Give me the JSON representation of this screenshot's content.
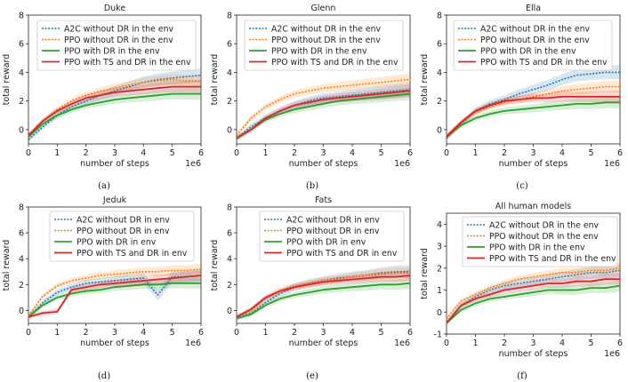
{
  "colors": {
    "a2c": "#1f77b4",
    "ppo": "#ff7f0e",
    "dr": "#2ca02c",
    "ts": "#d62728",
    "axis": "#222222"
  },
  "common": {
    "xlabel": "number of steps",
    "ylabel": "total reward",
    "xscale_label": "1e6"
  },
  "chart_data": [
    {
      "type": "line",
      "title": "Duke",
      "caption": "(a)",
      "legend": [
        "A2C without DR in the env",
        "PPO without DR in the env",
        "PPO with DR in the env",
        "PPO with TS and DR in the env"
      ],
      "xlim": [
        0,
        6
      ],
      "ylim": [
        -1,
        8
      ],
      "xticks": [
        0,
        1,
        2,
        3,
        4,
        5,
        6
      ],
      "yticks": [
        0,
        2,
        4,
        6,
        8
      ],
      "x": [
        0,
        0.5,
        1,
        1.5,
        2,
        2.5,
        3,
        3.5,
        4,
        4.5,
        5,
        5.5,
        6
      ],
      "series": [
        {
          "name": "A2C",
          "values": [
            -0.7,
            0.2,
            1.0,
            1.6,
            2.0,
            2.4,
            2.7,
            3.0,
            3.3,
            3.5,
            3.6,
            3.7,
            3.8
          ]
        },
        {
          "name": "PPO",
          "values": [
            -0.5,
            0.6,
            1.4,
            2.0,
            2.4,
            2.7,
            2.9,
            3.1,
            3.3,
            3.4,
            3.5,
            3.4,
            3.4
          ]
        },
        {
          "name": "PPO+DR",
          "values": [
            -0.5,
            0.4,
            1.0,
            1.4,
            1.7,
            1.9,
            2.1,
            2.2,
            2.3,
            2.4,
            2.5,
            2.5,
            2.5
          ]
        },
        {
          "name": "PPO+TS+DR",
          "values": [
            -0.4,
            0.6,
            1.3,
            1.8,
            2.2,
            2.4,
            2.6,
            2.7,
            2.8,
            2.9,
            3.0,
            3.0,
            3.0
          ]
        }
      ]
    },
    {
      "type": "line",
      "title": "Glenn",
      "caption": "(b)",
      "legend": [
        "A2C without DR in the env",
        "PPO without DR in the env",
        "PPO with DR in the env",
        "PPO with TS and DR in the env"
      ],
      "xlim": [
        0,
        6
      ],
      "ylim": [
        -1,
        8
      ],
      "xticks": [
        0,
        1,
        2,
        3,
        4,
        5,
        6
      ],
      "yticks": [
        0,
        2,
        4,
        6,
        8
      ],
      "x": [
        0,
        0.5,
        1,
        1.5,
        2,
        2.5,
        3,
        3.5,
        4,
        4.5,
        5,
        5.5,
        6
      ],
      "series": [
        {
          "name": "A2C",
          "values": [
            -0.6,
            0.2,
            0.8,
            1.3,
            1.7,
            2.0,
            2.2,
            2.3,
            2.4,
            2.5,
            2.6,
            2.7,
            2.8
          ]
        },
        {
          "name": "PPO",
          "values": [
            -0.4,
            0.8,
            1.6,
            2.1,
            2.5,
            2.7,
            2.9,
            3.0,
            3.1,
            3.2,
            3.3,
            3.4,
            3.5
          ]
        },
        {
          "name": "PPO+DR",
          "values": [
            -0.6,
            0.0,
            0.7,
            1.1,
            1.4,
            1.6,
            1.8,
            2.0,
            2.1,
            2.2,
            2.3,
            2.4,
            2.5
          ]
        },
        {
          "name": "PPO+TS+DR",
          "values": [
            -0.6,
            0.0,
            0.8,
            1.3,
            1.7,
            1.9,
            2.1,
            2.2,
            2.3,
            2.4,
            2.5,
            2.6,
            2.7
          ]
        }
      ]
    },
    {
      "type": "line",
      "title": "Ella",
      "caption": "(c)",
      "legend": [
        "A2C without DR in the env",
        "PPO without DR in the env",
        "PPO with DR in the env",
        "PPO with TS and DR in the env"
      ],
      "xlim": [
        0,
        6
      ],
      "ylim": [
        -1,
        8
      ],
      "xticks": [
        0,
        1,
        2,
        3,
        4,
        5,
        6
      ],
      "yticks": [
        0,
        2,
        4,
        6,
        8
      ],
      "x": [
        0,
        0.5,
        1,
        1.5,
        2,
        2.5,
        3,
        3.5,
        4,
        4.5,
        5,
        5.5,
        6
      ],
      "series": [
        {
          "name": "A2C",
          "values": [
            -0.6,
            0.4,
            1.3,
            1.8,
            2.1,
            2.5,
            2.8,
            3.1,
            3.5,
            3.8,
            3.9,
            4.0,
            4.0
          ]
        },
        {
          "name": "PPO",
          "values": [
            -0.4,
            0.5,
            1.2,
            1.6,
            1.9,
            2.1,
            2.3,
            2.5,
            2.7,
            2.8,
            2.9,
            3.0,
            3.0
          ]
        },
        {
          "name": "PPO+DR",
          "values": [
            -0.5,
            0.3,
            0.8,
            1.1,
            1.3,
            1.4,
            1.5,
            1.6,
            1.7,
            1.8,
            1.8,
            1.9,
            1.9
          ]
        },
        {
          "name": "PPO+TS+DR",
          "values": [
            -0.5,
            0.5,
            1.3,
            1.7,
            2.0,
            2.1,
            2.2,
            2.2,
            2.3,
            2.3,
            2.3,
            2.3,
            2.3
          ]
        }
      ]
    },
    {
      "type": "line",
      "title": "Jeduk",
      "caption": "(d)",
      "legend": [
        "A2C without DR in env",
        "PPO without DR in env",
        "PPO with DR in env",
        "PPO with TS and DR in env"
      ],
      "xlim": [
        0,
        6
      ],
      "ylim": [
        -1,
        8
      ],
      "xticks": [
        0,
        1,
        2,
        3,
        4,
        5,
        6
      ],
      "yticks": [
        0,
        2,
        4,
        6,
        8
      ],
      "x": [
        0,
        0.5,
        1,
        1.5,
        2,
        2.5,
        3,
        3.5,
        4,
        4.5,
        5,
        5.5,
        6
      ],
      "series": [
        {
          "name": "A2C",
          "values": [
            -0.5,
            0.6,
            1.4,
            1.8,
            2.1,
            2.2,
            2.3,
            2.4,
            2.5,
            1.2,
            2.6,
            2.6,
            2.7
          ]
        },
        {
          "name": "PPO",
          "values": [
            -0.4,
            1.1,
            1.9,
            2.3,
            2.5,
            2.7,
            2.8,
            2.9,
            3.0,
            3.0,
            3.1,
            3.1,
            3.2
          ]
        },
        {
          "name": "PPO+DR",
          "values": [
            -0.5,
            0.4,
            1.0,
            1.3,
            1.5,
            1.6,
            1.8,
            1.9,
            2.0,
            2.0,
            2.1,
            2.1,
            2.1
          ]
        },
        {
          "name": "PPO+TS+DR",
          "values": [
            -0.5,
            -0.2,
            -0.1,
            1.6,
            1.8,
            2.0,
            2.1,
            2.2,
            2.3,
            2.4,
            2.5,
            2.6,
            2.7
          ]
        }
      ]
    },
    {
      "type": "line",
      "title": "Fats",
      "caption": "(e)",
      "legend": [
        "A2C without DR in env",
        "PPO without DR in env",
        "PPO with DR in env",
        "PPO with TS and DR in env"
      ],
      "xlim": [
        0,
        6
      ],
      "ylim": [
        -1,
        8
      ],
      "xticks": [
        0,
        1,
        2,
        3,
        4,
        5,
        6
      ],
      "yticks": [
        0,
        2,
        4,
        6,
        8
      ],
      "x": [
        0,
        0.5,
        1,
        1.5,
        2,
        2.5,
        3,
        3.5,
        4,
        4.5,
        5,
        5.5,
        6
      ],
      "series": [
        {
          "name": "A2C",
          "values": [
            -0.6,
            -0.2,
            0.6,
            1.3,
            1.8,
            2.1,
            2.3,
            2.5,
            2.6,
            2.7,
            2.9,
            3.0,
            3.0
          ]
        },
        {
          "name": "PPO",
          "values": [
            -0.5,
            0.0,
            0.9,
            1.5,
            1.9,
            2.1,
            2.3,
            2.4,
            2.6,
            2.7,
            2.8,
            2.9,
            2.9
          ]
        },
        {
          "name": "PPO+DR",
          "values": [
            -0.6,
            -0.3,
            0.4,
            0.9,
            1.2,
            1.4,
            1.6,
            1.7,
            1.8,
            1.9,
            2.0,
            2.0,
            2.1
          ]
        },
        {
          "name": "PPO+TS+DR",
          "values": [
            -0.5,
            0.1,
            1.0,
            1.5,
            1.8,
            2.0,
            2.2,
            2.3,
            2.4,
            2.5,
            2.6,
            2.6,
            2.7
          ]
        }
      ]
    },
    {
      "type": "line",
      "title": "All human models",
      "caption": "(f)",
      "legend": [
        "A2C without DR in the env",
        "PPO without DR in the env",
        "PPO with DR in the env",
        "PPO with TS and DR in the env"
      ],
      "xlim": [
        0,
        6
      ],
      "ylim": [
        -1,
        4.5
      ],
      "xticks": [
        0,
        1,
        2,
        3,
        4,
        5,
        6
      ],
      "yticks": [
        -1,
        0,
        1,
        2,
        3,
        4
      ],
      "x": [
        0,
        0.5,
        1,
        1.5,
        2,
        2.5,
        3,
        3.5,
        4,
        4.5,
        5,
        5.5,
        6
      ],
      "series": [
        {
          "name": "A2C",
          "values": [
            -0.5,
            0.3,
            0.7,
            1.0,
            1.2,
            1.3,
            1.4,
            1.5,
            1.6,
            1.7,
            1.8,
            1.8,
            1.9
          ]
        },
        {
          "name": "PPO",
          "values": [
            -0.3,
            0.5,
            0.8,
            1.1,
            1.3,
            1.5,
            1.6,
            1.7,
            1.8,
            1.8,
            1.9,
            1.9,
            2.0
          ]
        },
        {
          "name": "PPO+DR",
          "values": [
            -0.5,
            0.1,
            0.4,
            0.6,
            0.7,
            0.8,
            0.9,
            1.0,
            1.0,
            1.0,
            1.1,
            1.1,
            1.2
          ]
        },
        {
          "name": "PPO+TS+DR",
          "values": [
            -0.5,
            0.3,
            0.6,
            0.8,
            1.0,
            1.1,
            1.2,
            1.3,
            1.3,
            1.4,
            1.4,
            1.5,
            1.5
          ]
        }
      ]
    }
  ]
}
